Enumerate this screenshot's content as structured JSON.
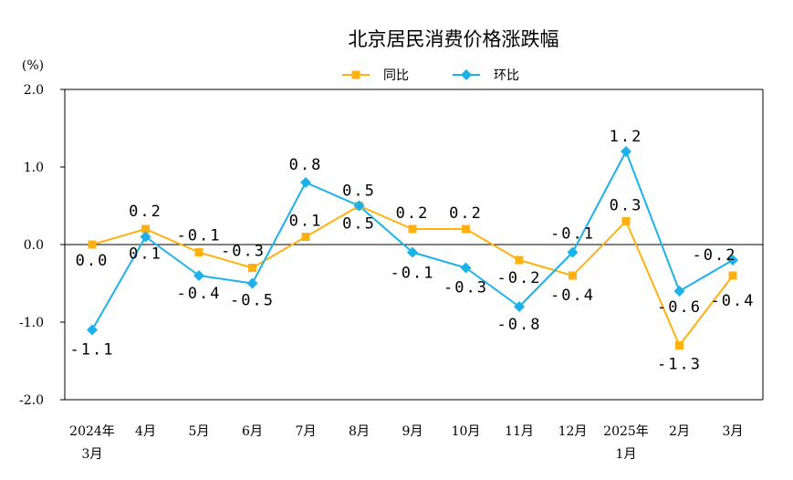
{
  "chart_data": {
    "type": "line",
    "title": "北京居民消费价格涨跌幅",
    "ylabel": "(%)",
    "ylim": [
      -2.0,
      2.0
    ],
    "yticks": [
      "2.0",
      "1.0",
      "0.0",
      "-1.0",
      "-2.0"
    ],
    "categories": [
      [
        "2024年",
        "3月"
      ],
      [
        "4月"
      ],
      [
        "5月"
      ],
      [
        "6月"
      ],
      [
        "7月"
      ],
      [
        "8月"
      ],
      [
        "9月"
      ],
      [
        "10月"
      ],
      [
        "11月"
      ],
      [
        "12月"
      ],
      [
        "2025年",
        "1月"
      ],
      [
        "2月"
      ],
      [
        "3月"
      ]
    ],
    "legend_position": "top-center",
    "grid": false,
    "series": [
      {
        "name": "同比",
        "color": "#FFB20F",
        "marker": "square",
        "values": [
          0.0,
          0.2,
          -0.1,
          -0.3,
          0.1,
          0.5,
          0.2,
          0.2,
          -0.2,
          -0.4,
          0.3,
          -1.3,
          -0.4
        ],
        "labels": [
          "0.0",
          "0.2",
          "-0.1",
          "-0.3",
          "0.1",
          "0.5",
          "0.2",
          "0.2",
          "-0.2",
          "-0.4",
          "0.3",
          "-1.3",
          "-0.4"
        ]
      },
      {
        "name": "环比",
        "color": "#1CB1E8",
        "marker": "diamond",
        "values": [
          -1.1,
          0.1,
          -0.4,
          -0.5,
          0.8,
          0.5,
          -0.1,
          -0.3,
          -0.8,
          -0.1,
          1.2,
          -0.6,
          -0.2
        ],
        "labels": [
          "-1.1",
          "0.1",
          "-0.4",
          "-0.5",
          "0.8",
          "0.5",
          "-0.1",
          "-0.3",
          "-0.8",
          "-0.1",
          "1.2",
          "-0.6",
          "-0.2"
        ]
      }
    ]
  }
}
